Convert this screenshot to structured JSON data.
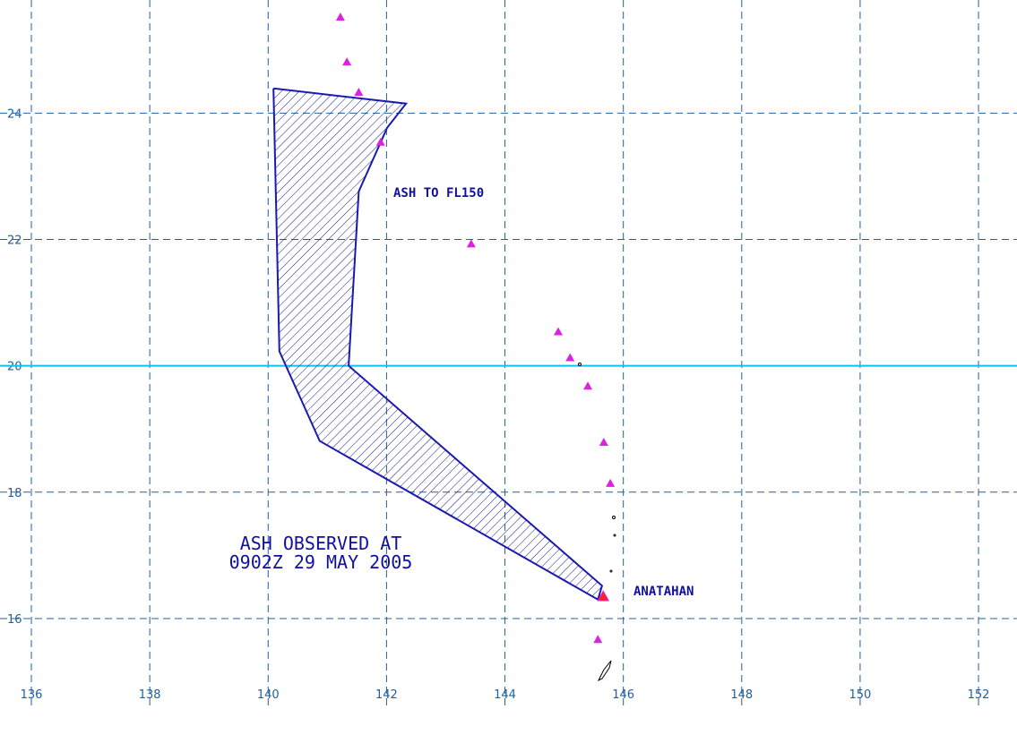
{
  "map": {
    "lonlim": [
      135.47,
      152.65
    ],
    "latlim": [
      14.03,
      25.79
    ],
    "lon_ticks": [
      136,
      138,
      140,
      142,
      144,
      146,
      148,
      150,
      152
    ],
    "lat_ticks": [
      16,
      18,
      20,
      22,
      24
    ],
    "equator_line_lat": 20,
    "ash_area": {
      "lon": [
        140.09,
        142.33,
        142.01,
        141.53,
        141.36,
        145.64,
        145.57,
        140.87,
        140.19,
        140.09
      ],
      "lat": [
        24.39,
        24.15,
        23.77,
        22.76,
        20.0,
        16.52,
        16.3,
        18.81,
        20.23,
        24.39
      ]
    },
    "volcanoes": {
      "lon": [
        141.22,
        141.33,
        141.53,
        141.9,
        143.43,
        144.9,
        145.1,
        145.4,
        145.67,
        145.78,
        145.57
      ],
      "lat": [
        25.52,
        24.81,
        24.33,
        23.54,
        21.93,
        20.54,
        20.13,
        19.68,
        18.79,
        18.14,
        15.67
      ]
    },
    "active_volcano": {
      "name": "ANATAHAN",
      "lon": 145.66,
      "lat": 16.35
    },
    "ash_label": "ASH TO FL150",
    "observed_line1": "ASH OBSERVED AT",
    "observed_line2": "0902Z 29 MAY 2005"
  }
}
